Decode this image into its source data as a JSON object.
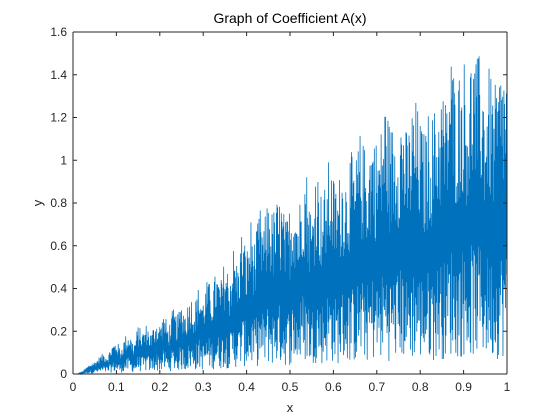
{
  "chart_data": {
    "type": "line",
    "title": "Graph of Coefficient A(x)",
    "xlabel": "x",
    "ylabel": "y",
    "xlim": [
      0,
      1
    ],
    "ylim": [
      0,
      1.6
    ],
    "grid": false,
    "x_ticks": [
      "0",
      "0.1",
      "0.2",
      "0.3",
      "0.4",
      "0.5",
      "0.6",
      "0.7",
      "0.8",
      "0.9",
      "1"
    ],
    "y_ticks": [
      "0",
      "0.2",
      "0.4",
      "0.6",
      "0.8",
      "1",
      "1.2",
      "1.4",
      "1.6"
    ],
    "line_color": "#0072BD",
    "series": [
      {
        "name": "",
        "x": [
          0,
          0.01,
          0.02,
          0.03,
          0.04,
          0.05,
          0.06,
          0.07,
          0.08,
          0.09,
          0.1,
          0.11,
          0.12,
          0.13,
          0.14,
          0.15,
          0.16,
          0.17,
          0.18,
          0.19,
          0.2,
          0.21,
          0.22,
          0.23,
          0.24,
          0.25,
          0.26,
          0.27,
          0.28,
          0.29,
          0.3,
          0.31,
          0.32,
          0.33,
          0.34,
          0.35,
          0.36,
          0.37,
          0.38,
          0.39,
          0.4,
          0.41,
          0.42,
          0.43,
          0.44,
          0.45,
          0.46,
          0.47,
          0.48,
          0.49,
          0.5,
          0.51,
          0.52,
          0.53,
          0.54,
          0.55,
          0.56,
          0.57,
          0.58,
          0.59,
          0.6,
          0.61,
          0.62,
          0.63,
          0.64,
          0.65,
          0.66,
          0.67,
          0.68,
          0.69,
          0.7,
          0.71,
          0.72,
          0.73,
          0.74,
          0.75,
          0.76,
          0.77,
          0.78,
          0.79,
          0.8,
          0.81,
          0.82,
          0.83,
          0.84,
          0.85,
          0.86,
          0.87,
          0.88,
          0.89,
          0.9,
          0.91,
          0.92,
          0.93,
          0.94,
          0.95,
          0.96,
          0.97,
          0.98,
          0.99,
          1.0
        ],
        "y": [
          0,
          0.0,
          0.01,
          0.03,
          0.05,
          0.06,
          0.08,
          0.1,
          0.09,
          0.14,
          0.16,
          0.12,
          0.18,
          0.2,
          0.14,
          0.23,
          0.2,
          0.24,
          0.19,
          0.26,
          0.24,
          0.29,
          0.22,
          0.31,
          0.27,
          0.34,
          0.3,
          0.38,
          0.33,
          0.42,
          0.36,
          0.45,
          0.4,
          0.49,
          0.43,
          0.55,
          0.47,
          0.6,
          0.52,
          0.7,
          0.58,
          0.73,
          0.62,
          0.79,
          0.7,
          0.85,
          0.76,
          0.82,
          0.83,
          0.72,
          0.8,
          0.9,
          0.77,
          1.0,
          0.96,
          0.74,
          1.04,
          0.86,
          0.88,
          1.02,
          0.93,
          0.89,
          1.0,
          0.95,
          1.05,
          0.98,
          1.14,
          1.08,
          1.06,
          1.18,
          1.1,
          1.16,
          1.33,
          1.17,
          1.19,
          1.24,
          1.27,
          1.12,
          1.26,
          1.29,
          1.2,
          1.13,
          1.25,
          1.23,
          1.3,
          1.37,
          1.29,
          1.55,
          1.4,
          1.44,
          1.51,
          1.38,
          1.57,
          1.48,
          1.52,
          1.35,
          1.45,
          1.33,
          1.41,
          1.5,
          1.45
        ]
      }
    ]
  }
}
